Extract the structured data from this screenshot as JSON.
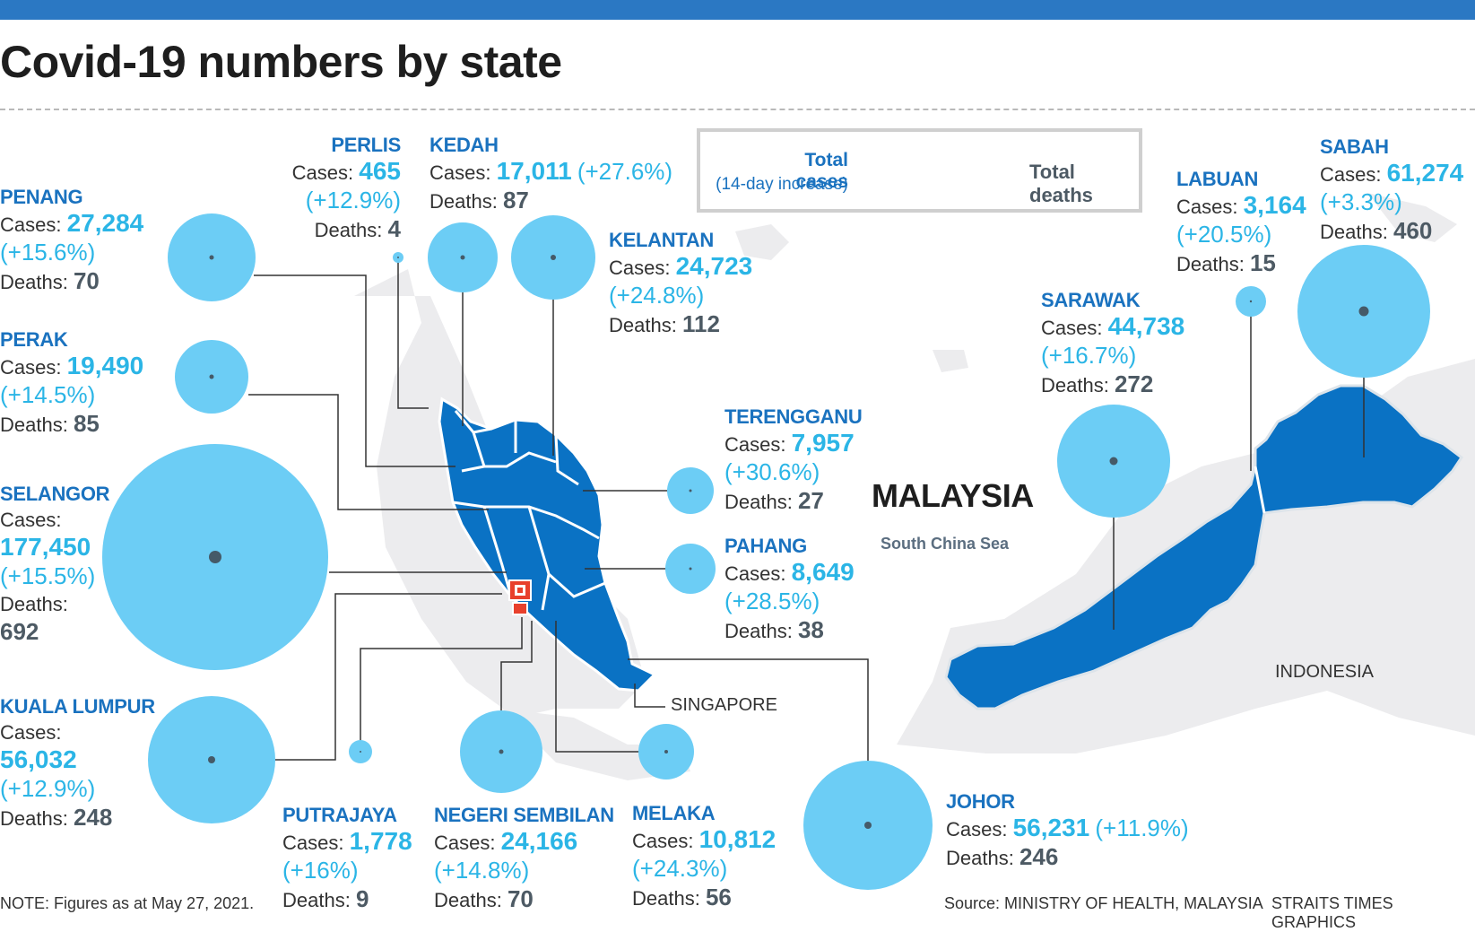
{
  "title": "Covid-19 numbers by state",
  "legend": {
    "total_cases": "Total cases",
    "increase": "(14-day increase)",
    "total_deaths": "Total deaths"
  },
  "map_labels": {
    "country": "MALAYSIA",
    "sea": "South China Sea",
    "neighbor": "INDONESIA",
    "city": "SINGAPORE"
  },
  "field_labels": {
    "cases": "Cases:",
    "deaths": "Deaths:"
  },
  "states": [
    {
      "id": "perlis",
      "name": "PERLIS",
      "cases": "465",
      "increase": "(+12.9%)",
      "deaths": "4"
    },
    {
      "id": "kedah",
      "name": "KEDAH",
      "cases": "17,011",
      "increase": "(+27.6%)",
      "deaths": "87"
    },
    {
      "id": "penang",
      "name": "PENANG",
      "cases": "27,284",
      "increase": "(+15.6%)",
      "deaths": "70"
    },
    {
      "id": "kelantan",
      "name": "KELANTAN",
      "cases": "24,723",
      "increase": "(+24.8%)",
      "deaths": "112"
    },
    {
      "id": "perak",
      "name": "PERAK",
      "cases": "19,490",
      "increase": "(+14.5%)",
      "deaths": "85"
    },
    {
      "id": "terengganu",
      "name": "TERENGGANU",
      "cases": "7,957",
      "increase": "(+30.6%)",
      "deaths": "27"
    },
    {
      "id": "selangor",
      "name": "SELANGOR",
      "cases": "177,450",
      "increase": "(+15.5%)",
      "deaths": "692"
    },
    {
      "id": "pahang",
      "name": "PAHANG",
      "cases": "8,649",
      "increase": "(+28.5%)",
      "deaths": "38"
    },
    {
      "id": "kuala_lumpur",
      "name": "KUALA LUMPUR",
      "cases": "56,032",
      "increase": "(+12.9%)",
      "deaths": "248"
    },
    {
      "id": "putrajaya",
      "name": "PUTRAJAYA",
      "cases": "1,778",
      "increase": "(+16%)",
      "deaths": "9"
    },
    {
      "id": "negeri_sembilan",
      "name": "NEGERI SEMBILAN",
      "cases": "24,166",
      "increase": "(+14.8%)",
      "deaths": "70"
    },
    {
      "id": "melaka",
      "name": "MELAKA",
      "cases": "10,812",
      "increase": "(+24.3%)",
      "deaths": "56"
    },
    {
      "id": "johor",
      "name": "JOHOR",
      "cases": "56,231",
      "increase": "(+11.9%)",
      "deaths": "246"
    },
    {
      "id": "sarawak",
      "name": "SARAWAK",
      "cases": "44,738",
      "increase": "(+16.7%)",
      "deaths": "272"
    },
    {
      "id": "labuan",
      "name": "LABUAN",
      "cases": "3,164",
      "increase": "(+20.5%)",
      "deaths": "15"
    },
    {
      "id": "sabah",
      "name": "SABAH",
      "cases": "61,274",
      "increase": "(+3.3%)",
      "deaths": "460"
    }
  ],
  "footer": {
    "note": "NOTE: Figures as at May 27, 2021.",
    "source": "Source: MINISTRY OF HEALTH, MALAYSIA",
    "credit": "STRAITS TIMES GRAPHICS"
  },
  "colors": {
    "bubble": "#6ccdf5",
    "land": "#0a72c4",
    "land_border": "#ffffff",
    "grey_land": "#ececee",
    "deaths_dot": "#455a68",
    "state_name": "#1a72bf",
    "cases_value": "#2bb5e6",
    "leader_line": "#333333",
    "top_bar": "#2b78c3"
  },
  "icons": {
    "capital_marker": "square-marker-icon"
  }
}
